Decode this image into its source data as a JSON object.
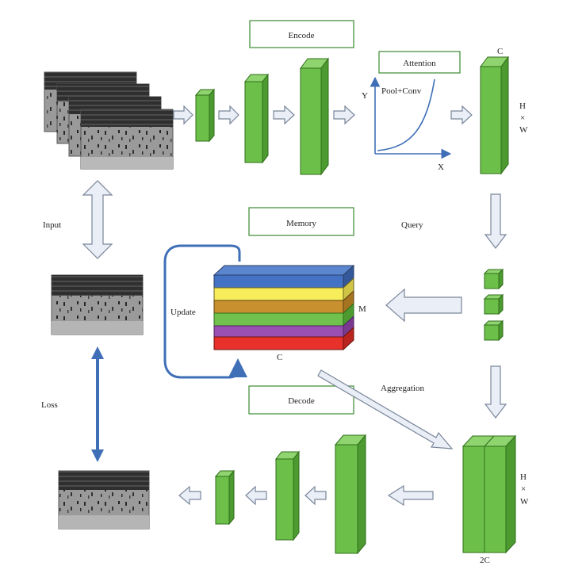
{
  "labels": {
    "encode": "Encode",
    "attention": "Attention",
    "memory": "Memory",
    "decode": "Decode",
    "pool_conv": "Pool+Conv",
    "axis_y": "Y",
    "axis_x": "X",
    "c_top": "C",
    "h_top": "H",
    "times_top": "×",
    "w_top": "W",
    "input": "Input",
    "query": "Query",
    "update": "Update",
    "m": "M",
    "c_mem": "C",
    "aggregation": "Aggregation",
    "loss": "Loss",
    "h_bot": "H",
    "times_bot": "×",
    "w_bot": "W",
    "two_c": "2C"
  },
  "colors": {
    "block_green": "#6cc04a",
    "block_green_dark": "#3f8a25",
    "mem_blue": "#4472c4",
    "mem_yellow": "#f7ec5a",
    "mem_orange": "#c8902e",
    "mem_green": "#70c14e",
    "mem_purple": "#9a4fb3",
    "mem_red": "#e8312a",
    "arrow_fill": "#e9eef7",
    "arrow_stroke": "#7a8699",
    "accent_blue": "#3f6fb7",
    "label_box_border": "#3a8a2e"
  },
  "memory_slots": [
    "blue",
    "yellow",
    "orange",
    "green",
    "purple",
    "red"
  ]
}
